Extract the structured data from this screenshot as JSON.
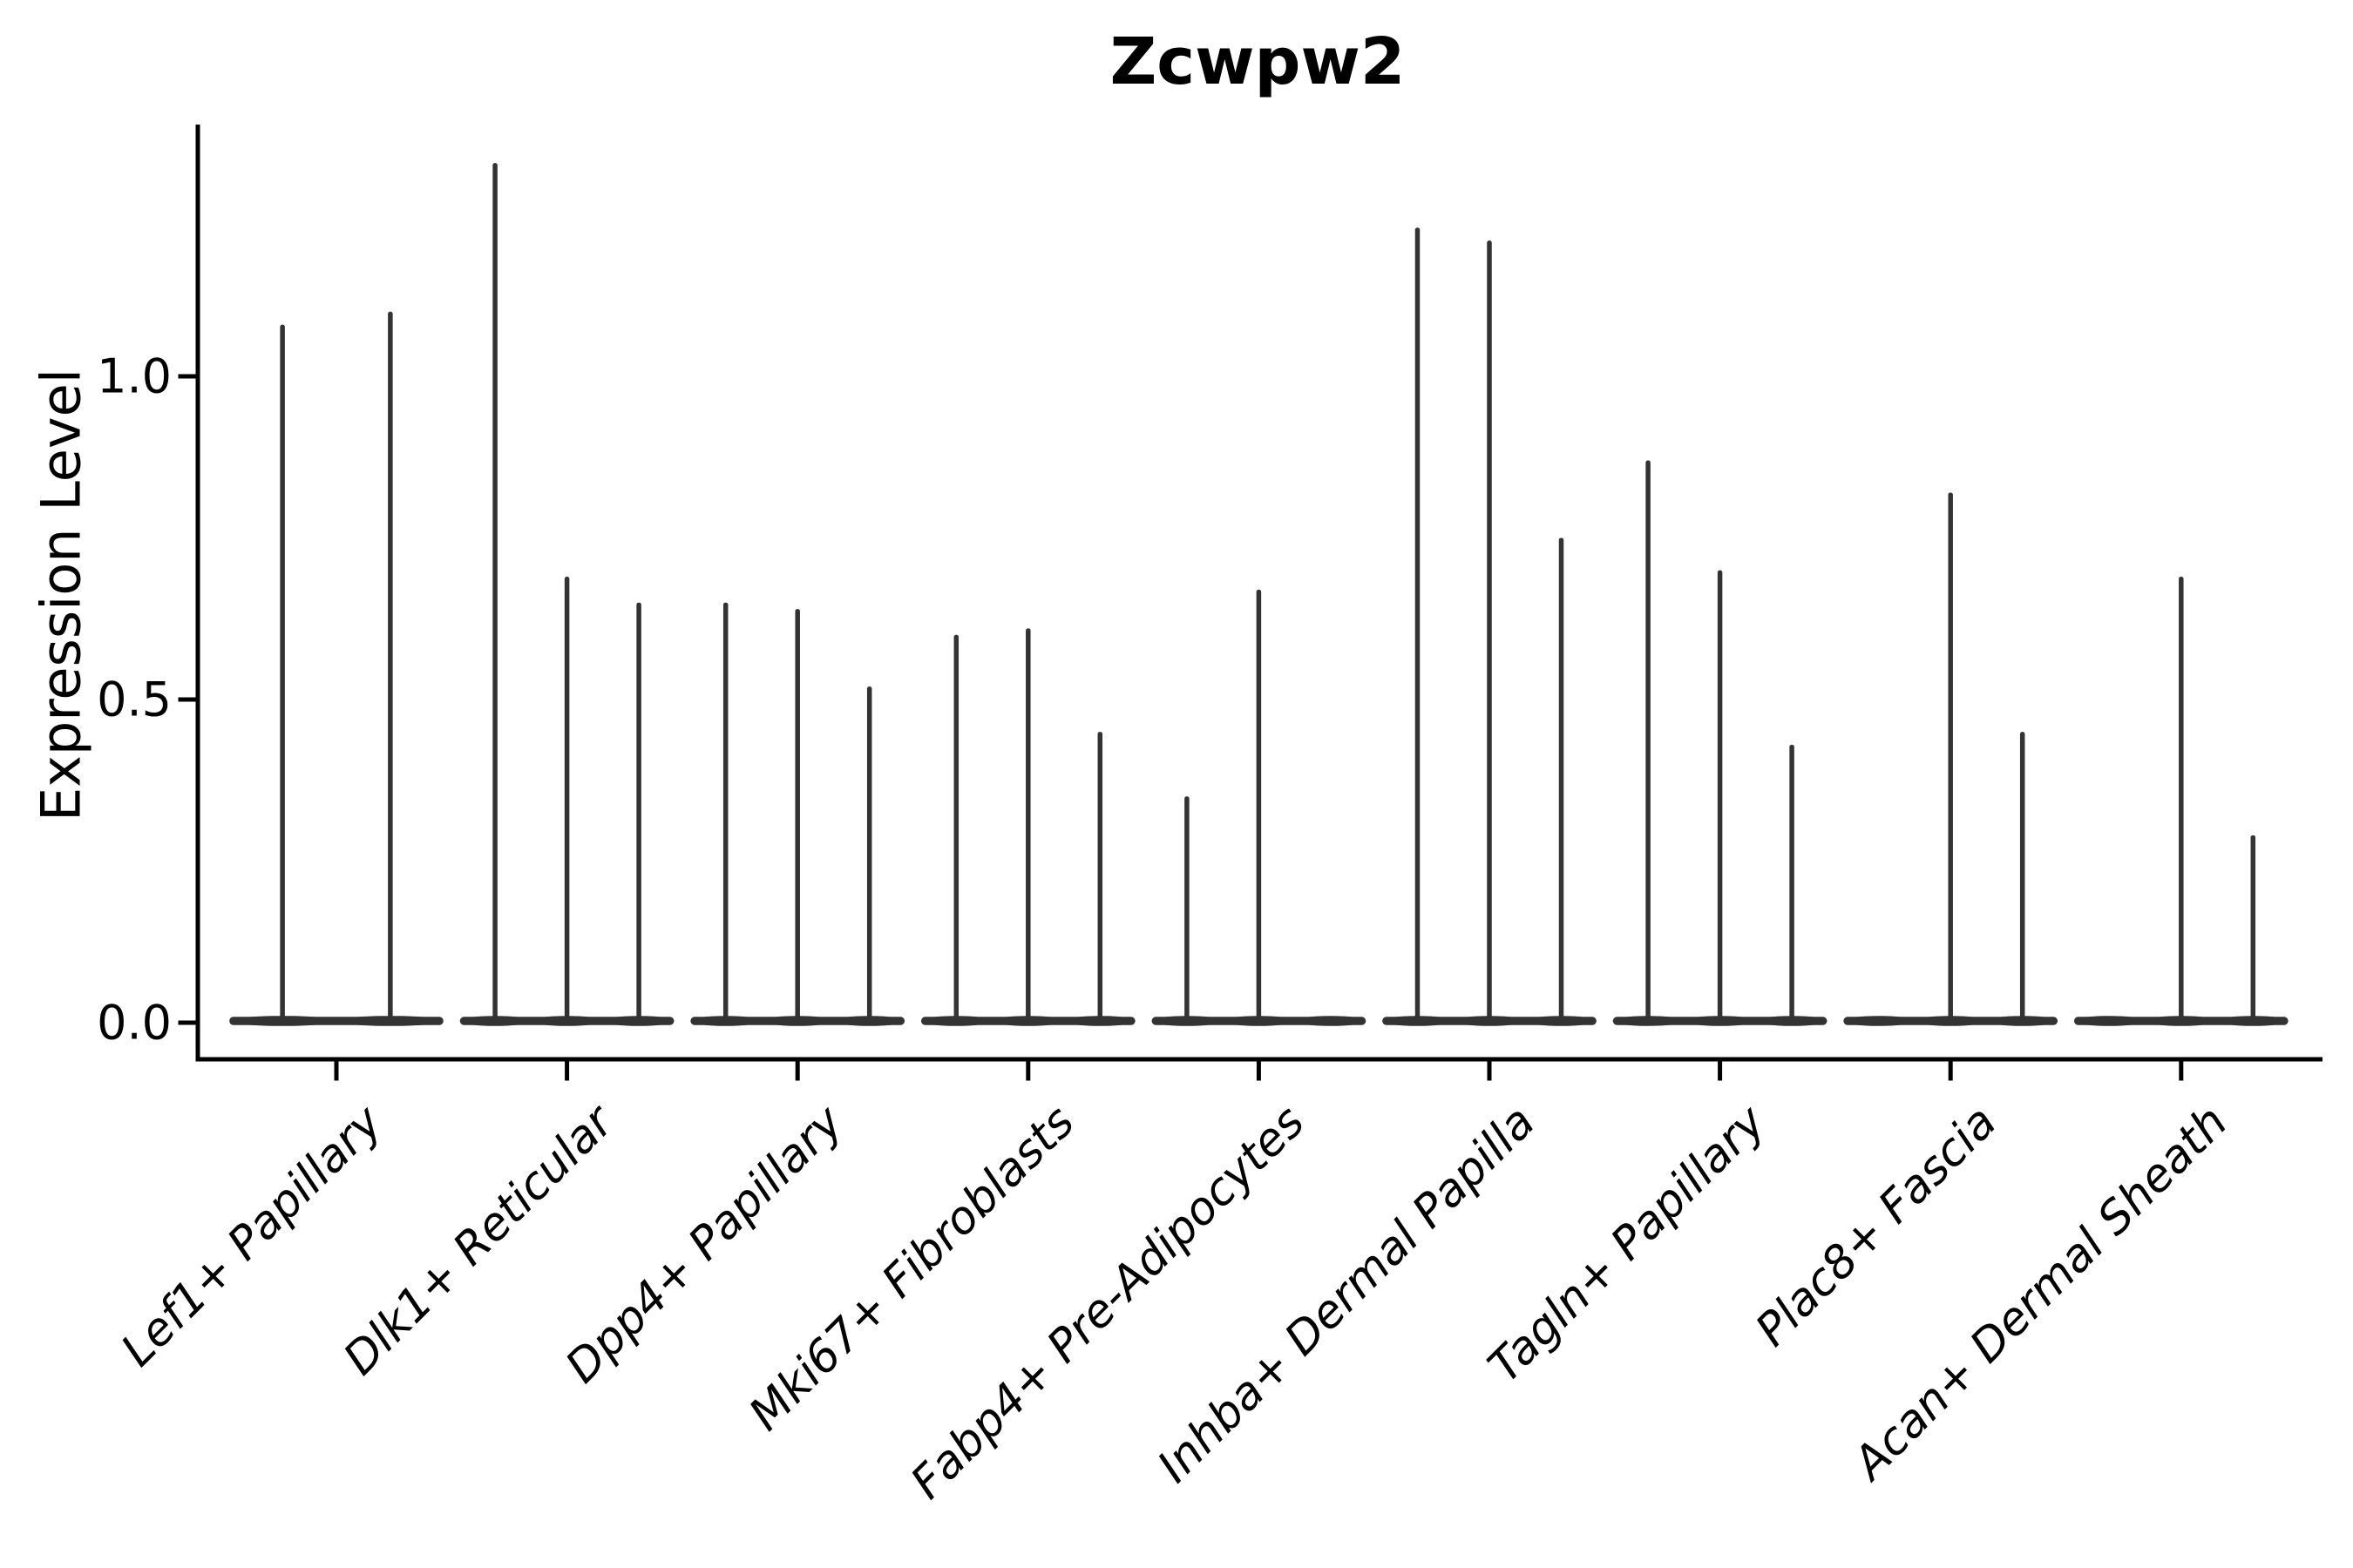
{
  "chart_data": {
    "type": "violin",
    "title": "Zcwpw2",
    "ylabel": "Expression Level",
    "xlabel": "",
    "ytick_labels": [
      "0.0",
      "0.5",
      "1.0"
    ],
    "ytick_values": [
      0.0,
      0.5,
      1.0
    ],
    "ylim": [
      -0.06,
      1.39
    ],
    "grid": "off",
    "legend": "none",
    "categories": [
      "Lef1+ Papillary",
      "Dlk1+ Reticular",
      "Dpp4+ Papillary",
      "Mki67+ Fibroblasts",
      "Fabp4+ Pre-Adipocytes",
      "Inhba+ Dermal Papilla",
      "Tagln+ Papillary",
      "Plac8+ Fascia",
      "Acan+ Dermal Sheath"
    ],
    "groups": [
      {
        "category": "Lef1+ Papillary",
        "violin_max_values": [
          1.08,
          1.1
        ]
      },
      {
        "category": "Dlk1+ Reticular",
        "violin_max_values": [
          1.33,
          0.69,
          0.65
        ]
      },
      {
        "category": "Dpp4+ Papillary",
        "violin_max_values": [
          0.65,
          0.64,
          0.52
        ]
      },
      {
        "category": "Mki67+ Fibroblasts",
        "violin_max_values": [
          0.6,
          0.61,
          0.45
        ]
      },
      {
        "category": "Fabp4+ Pre-Adipocytes",
        "violin_max_values": [
          0.35,
          0.67,
          0.0
        ]
      },
      {
        "category": "Inhba+ Dermal Papilla",
        "violin_max_values": [
          1.23,
          1.21,
          0.75
        ]
      },
      {
        "category": "Tagln+ Papillary",
        "violin_max_values": [
          0.87,
          0.7,
          0.43
        ]
      },
      {
        "category": "Plac8+ Fascia",
        "violin_max_values": [
          0.0,
          0.82,
          0.45
        ]
      },
      {
        "category": "Acan+ Dermal Sheath",
        "violin_max_values": [
          0.0,
          0.69,
          0.29
        ]
      }
    ],
    "colors": {
      "violin": "#333333",
      "axis": "#000000",
      "text": "#000000",
      "background": "#ffffff"
    }
  }
}
